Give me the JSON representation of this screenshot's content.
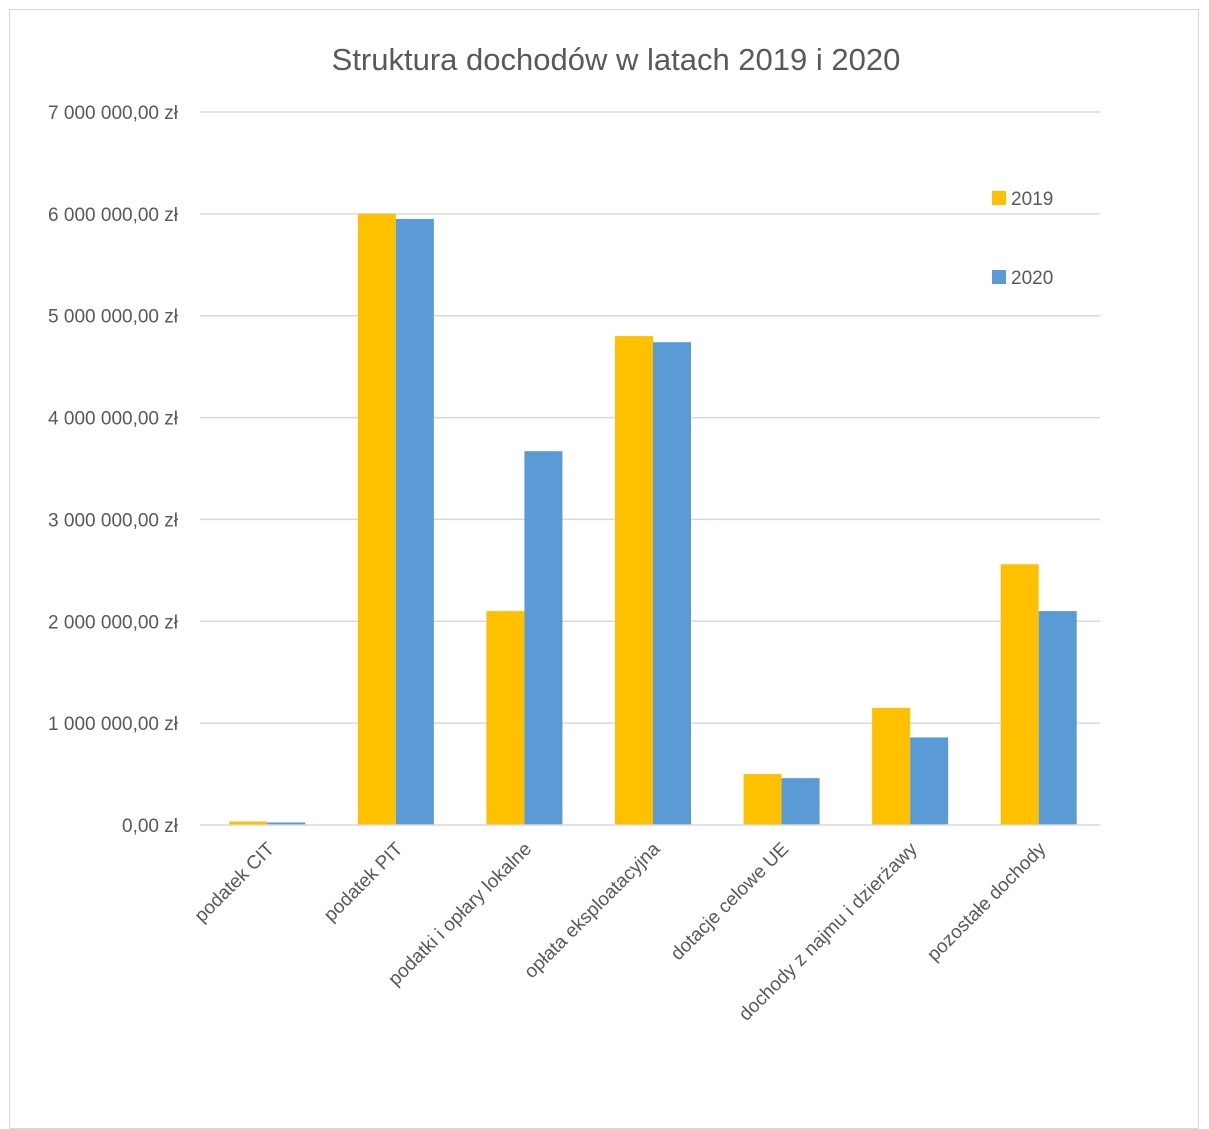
{
  "chart_data": {
    "type": "bar",
    "title": "Struktura dochodów w latach 2019 i 2020",
    "xlabel": "",
    "ylabel": "",
    "ylim": [
      0,
      7000000
    ],
    "y_ticks": [
      0,
      1000000,
      2000000,
      3000000,
      4000000,
      5000000,
      6000000,
      7000000
    ],
    "y_tick_labels": [
      "0,00 zł",
      "1 000 000,00 zł",
      "2 000 000,00 zł",
      "3 000 000,00 zł",
      "4 000 000,00 zł",
      "5 000 000,00 zł",
      "6 000 000,00 zł",
      "7 000 000,00 zł"
    ],
    "categories": [
      "podatek CIT",
      "podatek PIT",
      "podatki i opłary lokalne",
      "opłata eksploatacyjna",
      "dotacje celowe UE",
      "dochody z najmu i dzierżawy",
      "pozostałe dochody"
    ],
    "series": [
      {
        "name": "2019",
        "color": "#ffc000",
        "values": [
          35000,
          6000000,
          2100000,
          4800000,
          500000,
          1150000,
          2560000
        ]
      },
      {
        "name": "2020",
        "color": "#5b9bd5",
        "values": [
          25000,
          5950000,
          3670000,
          4740000,
          460000,
          860000,
          2100000
        ]
      }
    ],
    "grid": true,
    "legend_position": "top-right"
  }
}
